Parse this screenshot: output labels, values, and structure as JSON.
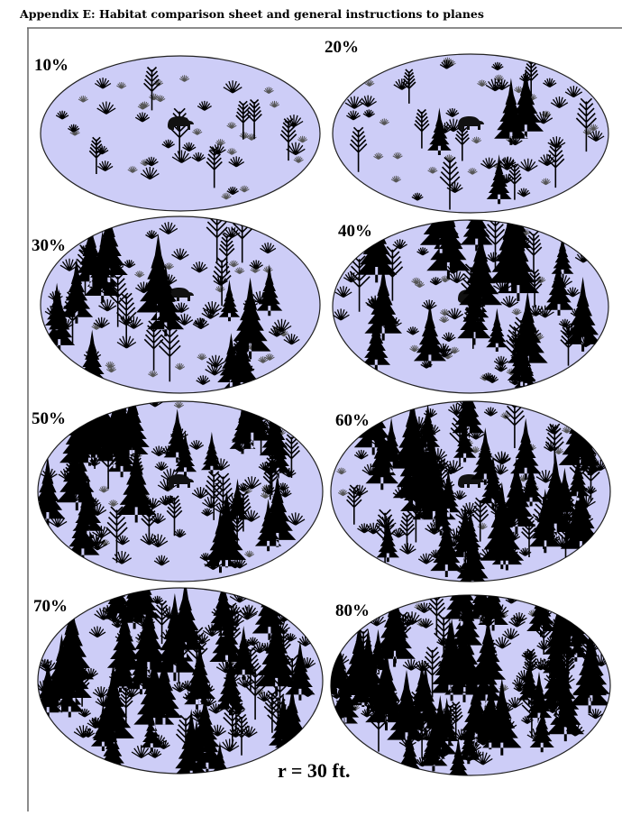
{
  "header": {
    "title": "Appendix E: Habitat comparison sheet and general instructions to planes"
  },
  "panels": [
    {
      "label": "10%"
    },
    {
      "label": "20%"
    },
    {
      "label": "30%"
    },
    {
      "label": "40%"
    },
    {
      "label": "50%"
    },
    {
      "label": "60%"
    },
    {
      "label": "70%"
    },
    {
      "label": "80%"
    }
  ],
  "footer": {
    "text": "r = 30 ft."
  }
}
